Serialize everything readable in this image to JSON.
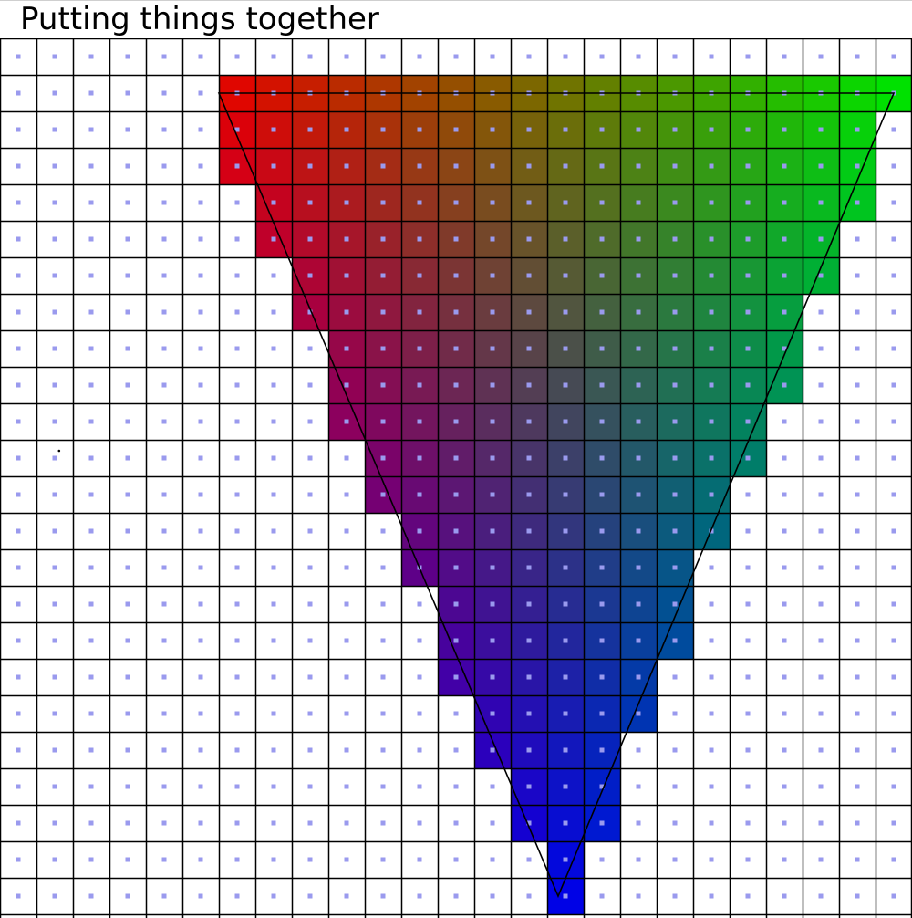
{
  "title": "Putting things together",
  "grid": {
    "cols": 25,
    "rows": 24
  },
  "triangle": {
    "vertices": [
      {
        "pos": [
          6,
          1.5
        ],
        "color": [
          230,
          0,
          0
        ]
      },
      {
        "pos": [
          24.5,
          1.5
        ],
        "color": [
          0,
          225,
          0
        ]
      },
      {
        "pos": [
          15.3,
          23.5
        ],
        "color": [
          0,
          0,
          230
        ]
      }
    ]
  },
  "colors": {
    "grid_line": "#000000",
    "sample_dot": "#9a9aee",
    "edge": "#000000",
    "background": "#ffffff"
  },
  "marker": {
    "col": 1,
    "row": 11,
    "name": "stray-point"
  }
}
